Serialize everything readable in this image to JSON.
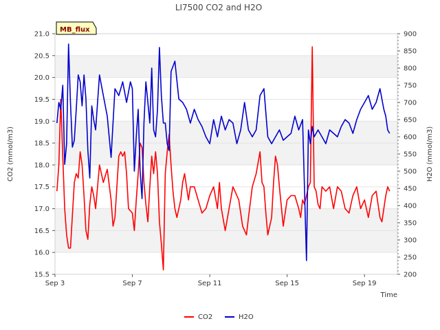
{
  "chart_data": {
    "type": "line",
    "title": "LI7500 CO2 and H2O",
    "badge": "MB_flux",
    "xlabel": "Time",
    "ylabel_left": "CO2 (mmol/m3)",
    "ylabel_right": "H2O (mmol/m3)",
    "x_tick_labels": [
      "Sep 3",
      "Sep 7",
      "Sep 11",
      "Sep 15",
      "Sep 19"
    ],
    "x_tick_days": [
      3,
      7,
      11,
      15,
      19
    ],
    "xlim": [
      3.0,
      20.7
    ],
    "ylim_left": [
      15.5,
      21.0
    ],
    "ylim_right": [
      200,
      900
    ],
    "y_ticks_left": [
      "15.5",
      "16.0",
      "16.5",
      "17.0",
      "17.5",
      "18.0",
      "18.5",
      "19.0",
      "19.5",
      "20.0",
      "20.5",
      "21.0"
    ],
    "y_ticks_right": [
      "200",
      "250",
      "300",
      "350",
      "400",
      "450",
      "500",
      "550",
      "600",
      "650",
      "700",
      "750",
      "800",
      "850",
      "900"
    ],
    "legend_position": "bottom-center",
    "series": [
      {
        "name": "CO2",
        "axis": "left",
        "color": "#ff0000",
        "x": [
          3.1,
          3.2,
          3.3,
          3.4,
          3.5,
          3.6,
          3.7,
          3.8,
          4.0,
          4.1,
          4.2,
          4.3,
          4.4,
          4.5,
          4.6,
          4.7,
          4.8,
          4.9,
          5.0,
          5.1,
          5.2,
          5.3,
          5.5,
          5.7,
          5.9,
          6.0,
          6.1,
          6.2,
          6.3,
          6.4,
          6.5,
          6.6,
          6.7,
          6.8,
          7.0,
          7.1,
          7.2,
          7.3,
          7.4,
          7.5,
          7.6,
          7.7,
          7.8,
          7.9,
          8.0,
          8.1,
          8.2,
          8.3,
          8.4,
          8.5,
          8.6,
          8.7,
          8.8,
          8.9,
          9.0,
          9.1,
          9.2,
          9.3,
          9.4,
          9.5,
          9.6,
          9.7,
          9.8,
          9.9,
          10.0,
          10.2,
          10.4,
          10.6,
          10.8,
          11.0,
          11.2,
          11.4,
          11.5,
          11.6,
          11.8,
          12.0,
          12.2,
          12.3,
          12.5,
          12.7,
          12.9,
          13.0,
          13.2,
          13.4,
          13.6,
          13.7,
          13.8,
          13.9,
          14.0,
          14.2,
          14.3,
          14.4,
          14.5,
          14.6,
          14.8,
          15.0,
          15.2,
          15.4,
          15.6,
          15.7,
          15.8,
          15.9,
          16.0,
          16.1,
          16.2,
          16.3,
          16.4,
          16.5,
          16.6,
          16.7,
          16.8,
          17.0,
          17.2,
          17.4,
          17.6,
          17.8,
          18.0,
          18.2,
          18.4,
          18.6,
          18.8,
          19.0,
          19.2,
          19.4,
          19.6,
          19.8,
          19.9,
          20.0,
          20.1,
          20.2,
          20.3
        ],
        "values": [
          17.4,
          18.0,
          19.5,
          18.2,
          17.0,
          16.4,
          16.1,
          16.1,
          17.6,
          17.8,
          17.7,
          18.3,
          18.0,
          17.3,
          16.5,
          16.3,
          17.1,
          17.5,
          17.3,
          17.0,
          17.5,
          18.0,
          17.6,
          17.9,
          17.2,
          16.6,
          16.8,
          17.5,
          18.2,
          18.3,
          18.2,
          18.3,
          17.8,
          17.0,
          16.9,
          16.5,
          17.2,
          17.8,
          18.5,
          18.4,
          17.6,
          17.1,
          16.7,
          17.5,
          18.2,
          17.8,
          18.3,
          17.8,
          16.7,
          16.2,
          15.6,
          17.8,
          18.3,
          18.7,
          18.0,
          17.4,
          17.0,
          16.8,
          17.0,
          17.2,
          17.6,
          17.8,
          17.5,
          17.2,
          17.5,
          17.5,
          17.2,
          16.9,
          17.0,
          17.3,
          17.5,
          17.0,
          17.6,
          17.0,
          16.5,
          17.0,
          17.5,
          17.4,
          17.2,
          16.6,
          16.4,
          16.8,
          17.5,
          17.8,
          18.3,
          17.6,
          17.5,
          16.9,
          16.4,
          16.8,
          17.6,
          18.2,
          18.0,
          17.5,
          16.6,
          17.2,
          17.3,
          17.3,
          17.0,
          16.8,
          17.2,
          17.1,
          17.3,
          17.5,
          17.6,
          20.7,
          17.5,
          17.4,
          17.1,
          17.0,
          17.5,
          17.4,
          17.5,
          17.0,
          17.5,
          17.4,
          17.0,
          16.9,
          17.3,
          17.5,
          17.0,
          17.2,
          16.8,
          17.3,
          17.4,
          16.8,
          16.7,
          17.0,
          17.3,
          17.5,
          17.4
        ]
      },
      {
        "name": "H2O",
        "axis": "right",
        "color": "#0000cc",
        "x": [
          3.1,
          3.2,
          3.3,
          3.4,
          3.5,
          3.6,
          3.7,
          3.8,
          3.9,
          4.0,
          4.1,
          4.2,
          4.3,
          4.4,
          4.5,
          4.6,
          4.7,
          4.8,
          4.9,
          5.0,
          5.1,
          5.2,
          5.3,
          5.5,
          5.7,
          5.9,
          6.1,
          6.3,
          6.5,
          6.7,
          6.9,
          7.0,
          7.1,
          7.2,
          7.3,
          7.4,
          7.5,
          7.6,
          7.7,
          7.8,
          7.9,
          8.0,
          8.1,
          8.2,
          8.3,
          8.4,
          8.5,
          8.6,
          8.7,
          8.8,
          8.9,
          9.0,
          9.2,
          9.4,
          9.6,
          9.8,
          10.0,
          10.2,
          10.4,
          10.6,
          10.8,
          11.0,
          11.2,
          11.4,
          11.6,
          11.8,
          12.0,
          12.2,
          12.4,
          12.6,
          12.8,
          13.0,
          13.2,
          13.4,
          13.6,
          13.8,
          14.0,
          14.2,
          14.4,
          14.6,
          14.8,
          15.0,
          15.2,
          15.4,
          15.6,
          15.8,
          16.0,
          16.1,
          16.2,
          16.3,
          16.4,
          16.6,
          16.8,
          17.0,
          17.2,
          17.4,
          17.6,
          17.8,
          18.0,
          18.2,
          18.4,
          18.6,
          18.8,
          19.0,
          19.2,
          19.4,
          19.6,
          19.8,
          20.0,
          20.1,
          20.2,
          20.3
        ],
        "values": [
          640,
          700,
          680,
          750,
          520,
          580,
          870,
          700,
          570,
          590,
          680,
          780,
          760,
          690,
          780,
          710,
          560,
          480,
          690,
          650,
          620,
          700,
          780,
          720,
          660,
          540,
          740,
          720,
          760,
          700,
          760,
          740,
          500,
          600,
          680,
          500,
          420,
          640,
          760,
          700,
          640,
          800,
          620,
          600,
          680,
          860,
          720,
          640,
          640,
          580,
          560,
          790,
          820,
          710,
          700,
          680,
          640,
          680,
          650,
          630,
          600,
          580,
          650,
          600,
          660,
          620,
          650,
          640,
          580,
          620,
          700,
          620,
          600,
          620,
          720,
          740,
          600,
          580,
          600,
          620,
          590,
          600,
          610,
          660,
          620,
          650,
          240,
          620,
          580,
          630,
          600,
          620,
          600,
          580,
          620,
          610,
          600,
          630,
          650,
          640,
          610,
          650,
          680,
          700,
          720,
          680,
          700,
          740,
          680,
          660,
          620,
          610
        ]
      }
    ],
    "legend": [
      {
        "label": "CO2",
        "color": "#ff0000"
      },
      {
        "label": "H2O",
        "color": "#0000cc"
      }
    ]
  }
}
